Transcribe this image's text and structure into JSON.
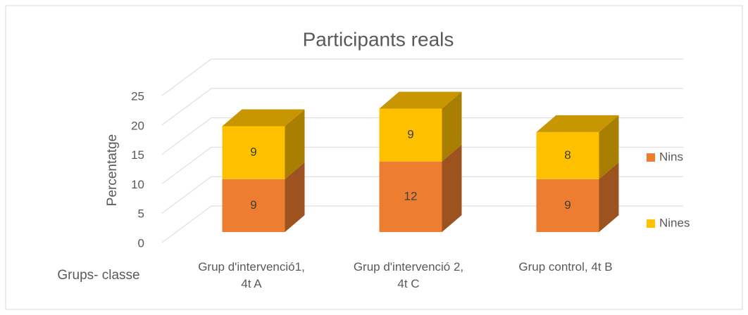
{
  "chart_data": {
    "type": "bar",
    "stacked": true,
    "three_d": true,
    "title": "Participants reals",
    "y_label": "Percentatge",
    "x_label": "Grups- classe",
    "categories": [
      "Grup d'intervenció1, 4t A",
      "Grup d'intervenció 2, 4t C",
      "Grup control, 4t B"
    ],
    "series": [
      {
        "name": "Nins",
        "color": "#ed7d31",
        "values": [
          9,
          12,
          9
        ]
      },
      {
        "name": "Nines",
        "color": "#ffc000",
        "values": [
          9,
          9,
          8
        ]
      }
    ],
    "ylim": [
      0,
      25
    ],
    "yticks": [
      0,
      5,
      10,
      15,
      20,
      25
    ],
    "grid": true,
    "legend": "right"
  }
}
